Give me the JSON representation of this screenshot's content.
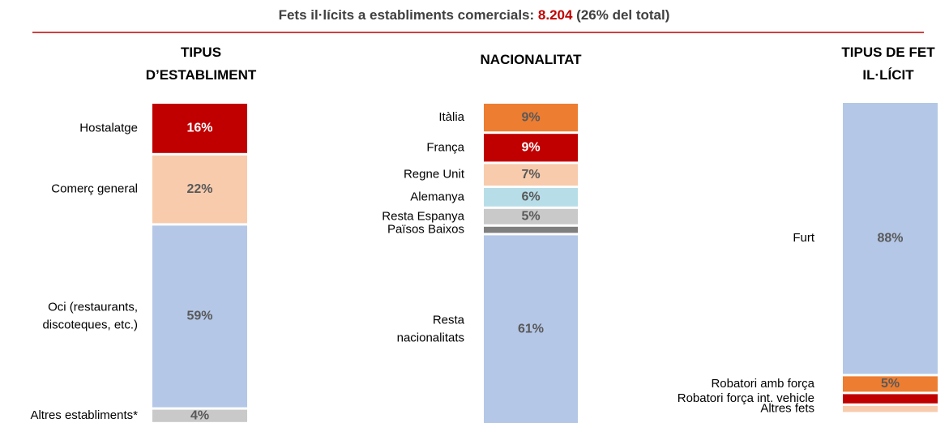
{
  "header": {
    "text_before": "Fets il·lícits a establiments comercials: ",
    "highlight": "8.204",
    "text_after": " (26% del total)"
  },
  "chart_data": [
    {
      "type": "stacked_bar",
      "title": [
        "TIPUS",
        "D’ESTABLIMENT"
      ],
      "categories": [
        [
          "Hostalatge"
        ],
        [
          "Comerç general"
        ],
        [
          "Oci (restaurants,",
          "discoteques, etc.)"
        ],
        [
          "Altres establiments*"
        ]
      ],
      "values": [
        16,
        22,
        59,
        4
      ],
      "value_labels": [
        "16%",
        "22%",
        "59%",
        "4%"
      ],
      "colors": [
        "#c00000",
        "#f8cbad",
        "#b4c7e7",
        "#c9c9c9"
      ]
    },
    {
      "type": "stacked_bar",
      "title": [
        "NACIONALITAT"
      ],
      "categories": [
        [
          "Itàlia"
        ],
        [
          "França"
        ],
        [
          "Regne Unit"
        ],
        [
          "Alemanya"
        ],
        [
          "Resta Espanya"
        ],
        [
          "Països Baixos"
        ],
        [
          "Resta",
          "nacionalitats"
        ]
      ],
      "values": [
        9,
        9,
        7,
        6,
        5,
        2,
        61
      ],
      "value_labels": [
        "9%",
        "9%",
        "7%",
        "6%",
        "5%",
        null,
        "61%"
      ],
      "colors": [
        "#ed7d31",
        "#c00000",
        "#f8cbad",
        "#b7dee8",
        "#c9c9c9",
        "#7f7f7f",
        "#b4c7e7"
      ]
    },
    {
      "type": "stacked_bar",
      "title": [
        "TIPUS DE FET",
        "IL·LÍCIT"
      ],
      "categories": [
        [
          "Furt"
        ],
        [
          "Robatori amb força"
        ],
        [
          "Robatori força int. vehicle"
        ],
        [
          "Altres fets"
        ]
      ],
      "values": [
        88,
        5,
        3,
        2
      ],
      "value_labels": [
        "88%",
        "5%",
        null,
        null
      ],
      "colors": [
        "#b4c7e7",
        "#ed7d31",
        "#c00000",
        "#f8cbad"
      ]
    }
  ]
}
